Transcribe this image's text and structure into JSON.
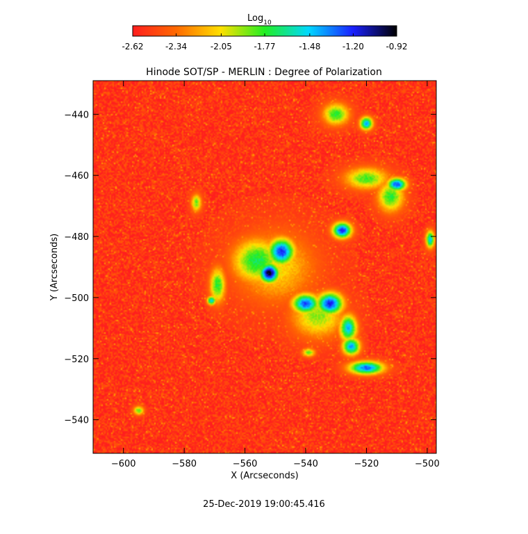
{
  "chart_data": {
    "type": "heatmap",
    "title": "Hinode SOT/SP - MERLIN : Degree of Polarization",
    "xlabel": "X (Arcseconds)",
    "ylabel": "Y (Arcseconds)",
    "xlim": [
      -610,
      -497
    ],
    "ylim": [
      -551,
      -429
    ],
    "x_ticks": [
      -600,
      -580,
      -560,
      -540,
      -520,
      -500
    ],
    "y_ticks": [
      -440,
      -460,
      -480,
      -500,
      -520,
      -540
    ],
    "colorbar": {
      "label_main": "Log",
      "label_sub": "10",
      "range": [
        -2.62,
        -0.92
      ],
      "tick_labels": [
        "-2.62",
        "-2.34",
        "-2.05",
        "-1.77",
        "-1.48",
        "-1.20",
        "-0.92"
      ],
      "tick_values": [
        -2.62,
        -2.34,
        -2.05,
        -1.77,
        -1.48,
        -1.2,
        -0.92
      ],
      "colors": [
        "#ff1e1e",
        "#ff6a00",
        "#ffe000",
        "#22ee22",
        "#00d8ff",
        "#1a20ff",
        "#000000"
      ]
    },
    "background_level": -2.55,
    "features": [
      {
        "name": "core-A",
        "x": -552,
        "y": -492,
        "sx": 2.2,
        "sy": 2.2,
        "peak": -0.95
      },
      {
        "name": "core-B",
        "x": -548,
        "y": -485,
        "sx": 3.0,
        "sy": 3.0,
        "peak": -1.2
      },
      {
        "name": "core-C",
        "x": -556,
        "y": -488,
        "sx": 5.5,
        "sy": 5.0,
        "peak": -1.7
      },
      {
        "name": "halo",
        "x": -550,
        "y": -490,
        "sx": 9.0,
        "sy": 8.0,
        "peak": -2.05
      },
      {
        "name": "band-1",
        "x": -540,
        "y": -502,
        "sx": 3.0,
        "sy": 2.2,
        "peak": -1.25
      },
      {
        "name": "band-2",
        "x": -532,
        "y": -502,
        "sx": 3.0,
        "sy": 2.5,
        "peak": -1.2
      },
      {
        "name": "band-3",
        "x": -536,
        "y": -506,
        "sx": 6.0,
        "sy": 5.0,
        "peak": -1.9
      },
      {
        "name": "tail-1",
        "x": -526,
        "y": -510,
        "sx": 2.0,
        "sy": 3.0,
        "peak": -1.45
      },
      {
        "name": "tail-2",
        "x": -525,
        "y": -516,
        "sx": 2.0,
        "sy": 2.0,
        "peak": -1.4
      },
      {
        "name": "tail-3",
        "x": -520,
        "y": -523,
        "sx": 4.0,
        "sy": 1.5,
        "peak": -1.3
      },
      {
        "name": "blob-NE",
        "x": -528,
        "y": -478,
        "sx": 2.2,
        "sy": 1.8,
        "peak": -1.2
      },
      {
        "name": "blob-NE2",
        "x": -510,
        "y": -463,
        "sx": 2.2,
        "sy": 1.5,
        "peak": -1.25
      },
      {
        "name": "arc-1",
        "x": -520,
        "y": -461,
        "sx": 5.0,
        "sy": 2.5,
        "peak": -1.8
      },
      {
        "name": "arc-2",
        "x": -512,
        "y": -467,
        "sx": 3.0,
        "sy": 3.5,
        "peak": -1.75
      },
      {
        "name": "top-1",
        "x": -530,
        "y": -440,
        "sx": 3.0,
        "sy": 2.5,
        "peak": -1.75
      },
      {
        "name": "top-2",
        "x": -520,
        "y": -443,
        "sx": 1.5,
        "sy": 1.5,
        "peak": -1.4
      },
      {
        "name": "left-1",
        "x": -569,
        "y": -496,
        "sx": 1.8,
        "sy": 4.0,
        "peak": -1.75
      },
      {
        "name": "left-2",
        "x": -571,
        "y": -501,
        "sx": 1.0,
        "sy": 1.0,
        "peak": -1.45
      },
      {
        "name": "west-1",
        "x": -576,
        "y": -469,
        "sx": 1.2,
        "sy": 2.0,
        "peak": -1.85
      },
      {
        "name": "south-1",
        "x": -539,
        "y": -518,
        "sx": 1.5,
        "sy": 1.0,
        "peak": -1.85
      },
      {
        "name": "south-2",
        "x": -595,
        "y": -537,
        "sx": 1.2,
        "sy": 1.0,
        "peak": -1.8
      },
      {
        "name": "east-edge",
        "x": -499,
        "y": -481,
        "sx": 1.0,
        "sy": 2.0,
        "peak": -1.5
      }
    ],
    "timestamp": "25-Dec-2019 19:00:45.416"
  }
}
